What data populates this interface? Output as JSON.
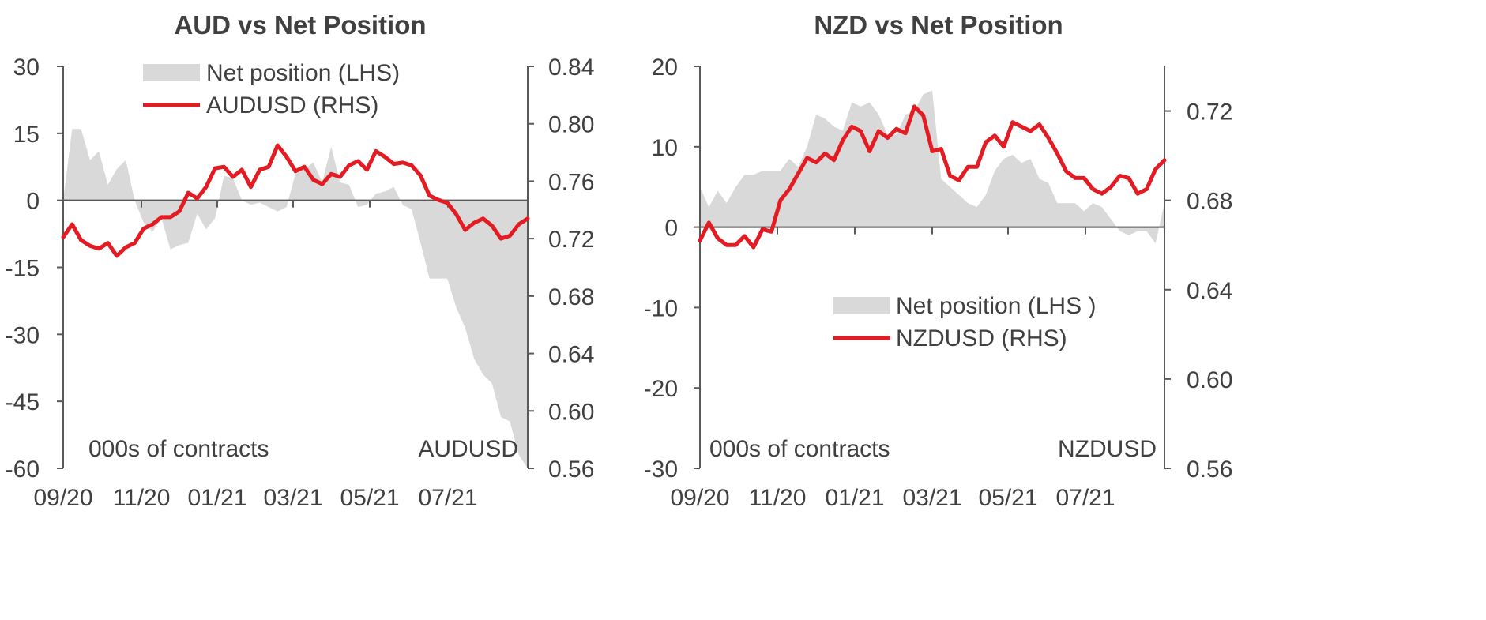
{
  "colors": {
    "area": "#d9d9d9",
    "line": "#e31b23",
    "axis": "#595959",
    "text": "#404040"
  },
  "chart_data": [
    {
      "type": "area+line",
      "title": "AUD vs Net Position",
      "left_axis_unit": "000s of contracts",
      "right_axis_unit": "AUDUSD",
      "x_tick_labels": [
        "09/20",
        "11/20",
        "01/21",
        "03/21",
        "05/21",
        "07/21"
      ],
      "left_ylim": [
        -60,
        30
      ],
      "left_yticks": [
        30,
        15,
        0,
        -15,
        -30,
        -45,
        -60
      ],
      "left_ytick_labels": [
        "30",
        "15",
        "0",
        "-15",
        "-30",
        "-45",
        "-60"
      ],
      "right_ylim": [
        0.56,
        0.84
      ],
      "right_yticks": [
        0.84,
        0.8,
        0.76,
        0.72,
        0.68,
        0.64,
        0.6,
        0.56
      ],
      "right_ytick_labels": [
        "0.84",
        "0.80",
        "0.76",
        "0.72",
        "0.68",
        "0.64",
        "0.60",
        "0.56"
      ],
      "legend": {
        "placement": "top-center",
        "entries": [
          "Net position (LHS)",
          "AUDUSD (RHS)"
        ]
      },
      "series": [
        {
          "name": "Net position (LHS)",
          "axis": "left",
          "kind": "area",
          "values": [
            0,
            16,
            16,
            9,
            11,
            3.5,
            7,
            9,
            0,
            -5,
            -7,
            -4,
            -11,
            -10,
            -9.5,
            -3,
            -6.5,
            -4,
            5.5,
            5,
            0,
            -1,
            -0.5,
            -1.5,
            -2.5,
            -1.5,
            6,
            7,
            8.5,
            4,
            12,
            4,
            3.5,
            -1.5,
            -1,
            1.5,
            2,
            3,
            -1,
            -2,
            -9.5,
            -17.5,
            -17.5,
            -17.5,
            -24,
            -28.5,
            -35.5,
            -39,
            -41,
            -48.5,
            -49.5,
            -57,
            -60
          ]
        },
        {
          "name": "AUDUSD (RHS)",
          "axis": "right",
          "kind": "line",
          "values": [
            0.721,
            0.73,
            0.719,
            0.715,
            0.713,
            0.717,
            0.708,
            0.714,
            0.717,
            0.727,
            0.73,
            0.735,
            0.735,
            0.739,
            0.752,
            0.748,
            0.756,
            0.769,
            0.77,
            0.763,
            0.768,
            0.756,
            0.768,
            0.77,
            0.785,
            0.777,
            0.767,
            0.77,
            0.761,
            0.758,
            0.765,
            0.763,
            0.771,
            0.774,
            0.768,
            0.781,
            0.777,
            0.772,
            0.773,
            0.771,
            0.764,
            0.75,
            0.747,
            0.745,
            0.737,
            0.726,
            0.731,
            0.734,
            0.729,
            0.72,
            0.722,
            0.73,
            0.734
          ]
        }
      ]
    },
    {
      "type": "area+line",
      "title": "NZD vs Net Position",
      "left_axis_unit": "000s of contracts",
      "right_axis_unit": "NZDUSD",
      "x_tick_labels": [
        "09/20",
        "11/20",
        "01/21",
        "03/21",
        "05/21",
        "07/21"
      ],
      "left_ylim": [
        -30,
        20
      ],
      "left_yticks": [
        20,
        10,
        0,
        -10,
        -20,
        -30
      ],
      "left_ytick_labels": [
        "20",
        "10",
        "0",
        "-10",
        "-20",
        "-30"
      ],
      "right_ylim": [
        0.56,
        0.74
      ],
      "right_yticks": [
        0.72,
        0.68,
        0.64,
        0.6,
        0.56
      ],
      "right_ytick_labels": [
        "0.72",
        "0.68",
        "0.64",
        "0.60",
        "0.56"
      ],
      "legend": {
        "placement": "center",
        "entries": [
          "Net position (LHS )",
          "NZDUSD (RHS)"
        ]
      },
      "series": [
        {
          "name": "Net position (LHS )",
          "axis": "left",
          "kind": "area",
          "values": [
            5,
            2.5,
            4.5,
            3,
            5,
            6.5,
            6.5,
            7,
            7,
            7,
            8.5,
            7.5,
            10,
            14,
            13.5,
            12.5,
            12,
            15.5,
            15,
            15.5,
            14,
            11.5,
            11.5,
            14,
            14.5,
            16.5,
            17,
            6,
            5,
            4,
            3,
            2.5,
            4,
            7,
            8.5,
            9,
            8,
            8.5,
            6,
            5.5,
            3,
            3,
            3,
            2,
            3,
            2.5,
            1,
            -0.5,
            -1,
            -0.5,
            -0.5,
            -2,
            3
          ]
        },
        {
          "name": "NZDUSD (RHS)",
          "axis": "right",
          "kind": "line",
          "values": [
            0.662,
            0.67,
            0.663,
            0.66,
            0.66,
            0.664,
            0.659,
            0.667,
            0.666,
            0.68,
            0.685,
            0.692,
            0.699,
            0.697,
            0.701,
            0.698,
            0.707,
            0.713,
            0.711,
            0.702,
            0.711,
            0.708,
            0.712,
            0.71,
            0.722,
            0.718,
            0.702,
            0.703,
            0.691,
            0.689,
            0.695,
            0.695,
            0.706,
            0.709,
            0.704,
            0.715,
            0.713,
            0.711,
            0.714,
            0.708,
            0.701,
            0.693,
            0.69,
            0.69,
            0.685,
            0.683,
            0.686,
            0.691,
            0.69,
            0.683,
            0.685,
            0.694,
            0.698
          ]
        }
      ]
    }
  ]
}
